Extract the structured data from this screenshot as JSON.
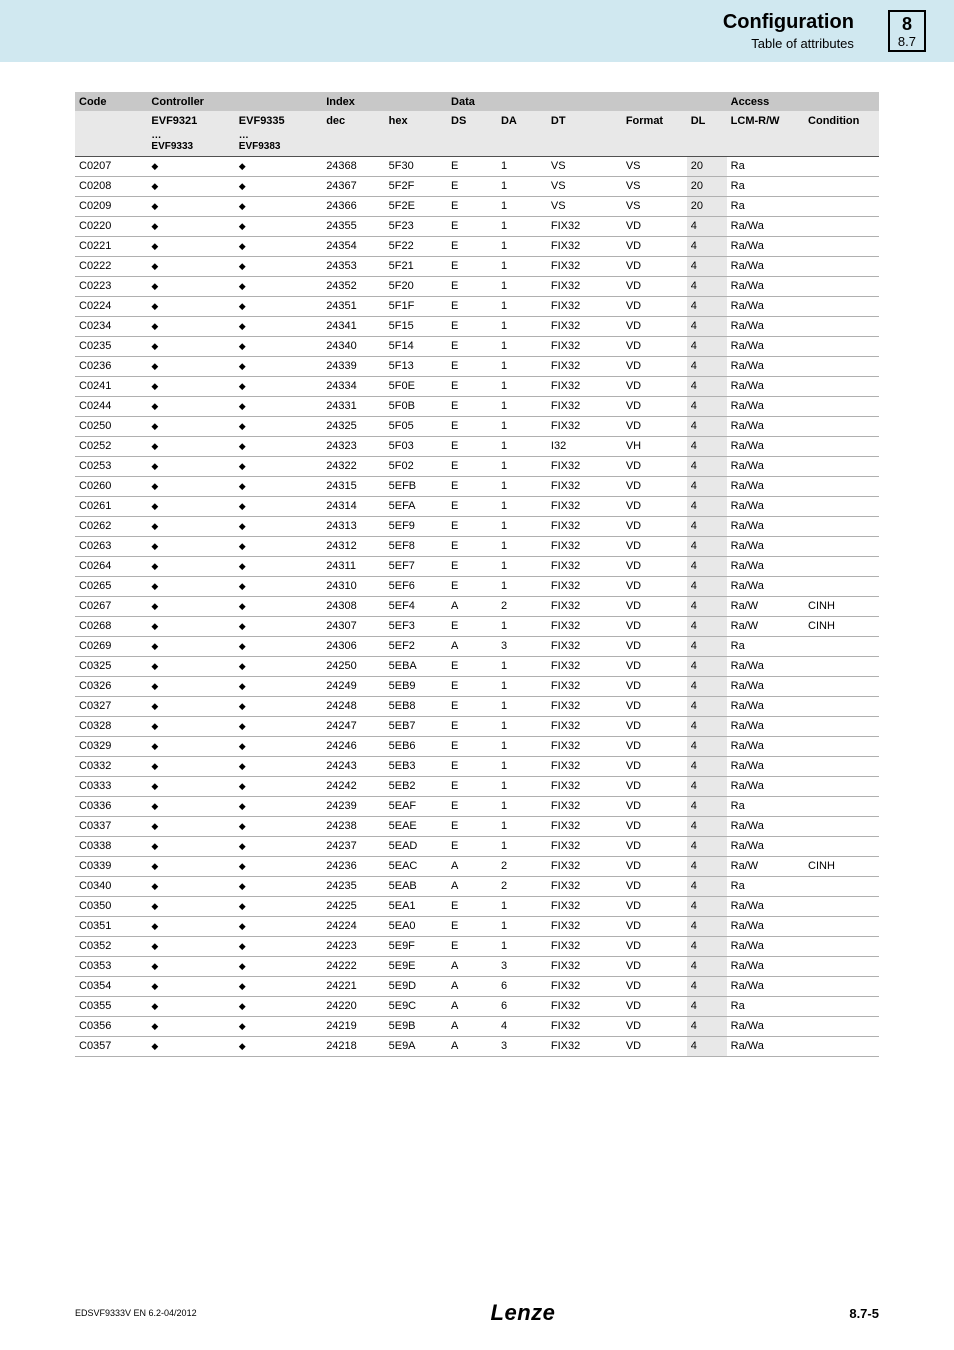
{
  "header": {
    "title": "Configuration",
    "subtitle": "Table of attributes",
    "chapter": "8",
    "section": "8.7"
  },
  "footer": {
    "doc_id": "EDSVF9333V   EN   6.2-04/2012",
    "logo": "Lenze",
    "page": "8.7-5"
  },
  "table": {
    "group_headers": {
      "code": "Code",
      "controller": "Controller",
      "index": "Index",
      "data": "Data",
      "access": "Access"
    },
    "sub_headers": {
      "ctrl1": "EVF9321",
      "ctrl2": "EVF9335",
      "ctrl1b": "…\nEVF9333",
      "ctrl2b": "…\nEVF9383",
      "dec": "dec",
      "hex": "hex",
      "ds": "DS",
      "da": "DA",
      "dt": "DT",
      "format": "Format",
      "dl": "DL",
      "lcm": "LCM-R/W",
      "cond": "Condition"
    },
    "diamond": "◆",
    "rows": [
      {
        "code": "C0207",
        "dec": "24368",
        "hex": "5F30",
        "ds": "E",
        "da": "1",
        "dt": "VS",
        "fmt": "VS",
        "dl": "20",
        "lcm": "Ra",
        "cond": ""
      },
      {
        "code": "C0208",
        "dec": "24367",
        "hex": "5F2F",
        "ds": "E",
        "da": "1",
        "dt": "VS",
        "fmt": "VS",
        "dl": "20",
        "lcm": "Ra",
        "cond": ""
      },
      {
        "code": "C0209",
        "dec": "24366",
        "hex": "5F2E",
        "ds": "E",
        "da": "1",
        "dt": "VS",
        "fmt": "VS",
        "dl": "20",
        "lcm": "Ra",
        "cond": ""
      },
      {
        "code": "C0220",
        "dec": "24355",
        "hex": "5F23",
        "ds": "E",
        "da": "1",
        "dt": "FIX32",
        "fmt": "VD",
        "dl": "4",
        "lcm": "Ra/Wa",
        "cond": ""
      },
      {
        "code": "C0221",
        "dec": "24354",
        "hex": "5F22",
        "ds": "E",
        "da": "1",
        "dt": "FIX32",
        "fmt": "VD",
        "dl": "4",
        "lcm": "Ra/Wa",
        "cond": ""
      },
      {
        "code": "C0222",
        "dec": "24353",
        "hex": "5F21",
        "ds": "E",
        "da": "1",
        "dt": "FIX32",
        "fmt": "VD",
        "dl": "4",
        "lcm": "Ra/Wa",
        "cond": ""
      },
      {
        "code": "C0223",
        "dec": "24352",
        "hex": "5F20",
        "ds": "E",
        "da": "1",
        "dt": "FIX32",
        "fmt": "VD",
        "dl": "4",
        "lcm": "Ra/Wa",
        "cond": ""
      },
      {
        "code": "C0224",
        "dec": "24351",
        "hex": "5F1F",
        "ds": "E",
        "da": "1",
        "dt": "FIX32",
        "fmt": "VD",
        "dl": "4",
        "lcm": "Ra/Wa",
        "cond": ""
      },
      {
        "code": "C0234",
        "dec": "24341",
        "hex": "5F15",
        "ds": "E",
        "da": "1",
        "dt": "FIX32",
        "fmt": "VD",
        "dl": "4",
        "lcm": "Ra/Wa",
        "cond": ""
      },
      {
        "code": "C0235",
        "dec": "24340",
        "hex": "5F14",
        "ds": "E",
        "da": "1",
        "dt": "FIX32",
        "fmt": "VD",
        "dl": "4",
        "lcm": "Ra/Wa",
        "cond": ""
      },
      {
        "code": "C0236",
        "dec": "24339",
        "hex": "5F13",
        "ds": "E",
        "da": "1",
        "dt": "FIX32",
        "fmt": "VD",
        "dl": "4",
        "lcm": "Ra/Wa",
        "cond": ""
      },
      {
        "code": "C0241",
        "dec": "24334",
        "hex": "5F0E",
        "ds": "E",
        "da": "1",
        "dt": "FIX32",
        "fmt": "VD",
        "dl": "4",
        "lcm": "Ra/Wa",
        "cond": ""
      },
      {
        "code": "C0244",
        "dec": "24331",
        "hex": "5F0B",
        "ds": "E",
        "da": "1",
        "dt": "FIX32",
        "fmt": "VD",
        "dl": "4",
        "lcm": "Ra/Wa",
        "cond": ""
      },
      {
        "code": "C0250",
        "dec": "24325",
        "hex": "5F05",
        "ds": "E",
        "da": "1",
        "dt": "FIX32",
        "fmt": "VD",
        "dl": "4",
        "lcm": "Ra/Wa",
        "cond": ""
      },
      {
        "code": "C0252",
        "dec": "24323",
        "hex": "5F03",
        "ds": "E",
        "da": "1",
        "dt": "I32",
        "fmt": "VH",
        "dl": "4",
        "lcm": "Ra/Wa",
        "cond": ""
      },
      {
        "code": "C0253",
        "dec": "24322",
        "hex": "5F02",
        "ds": "E",
        "da": "1",
        "dt": "FIX32",
        "fmt": "VD",
        "dl": "4",
        "lcm": "Ra/Wa",
        "cond": ""
      },
      {
        "code": "C0260",
        "dec": "24315",
        "hex": "5EFB",
        "ds": "E",
        "da": "1",
        "dt": "FIX32",
        "fmt": "VD",
        "dl": "4",
        "lcm": "Ra/Wa",
        "cond": ""
      },
      {
        "code": "C0261",
        "dec": "24314",
        "hex": "5EFA",
        "ds": "E",
        "da": "1",
        "dt": "FIX32",
        "fmt": "VD",
        "dl": "4",
        "lcm": "Ra/Wa",
        "cond": ""
      },
      {
        "code": "C0262",
        "dec": "24313",
        "hex": "5EF9",
        "ds": "E",
        "da": "1",
        "dt": "FIX32",
        "fmt": "VD",
        "dl": "4",
        "lcm": "Ra/Wa",
        "cond": ""
      },
      {
        "code": "C0263",
        "dec": "24312",
        "hex": "5EF8",
        "ds": "E",
        "da": "1",
        "dt": "FIX32",
        "fmt": "VD",
        "dl": "4",
        "lcm": "Ra/Wa",
        "cond": ""
      },
      {
        "code": "C0264",
        "dec": "24311",
        "hex": "5EF7",
        "ds": "E",
        "da": "1",
        "dt": "FIX32",
        "fmt": "VD",
        "dl": "4",
        "lcm": "Ra/Wa",
        "cond": ""
      },
      {
        "code": "C0265",
        "dec": "24310",
        "hex": "5EF6",
        "ds": "E",
        "da": "1",
        "dt": "FIX32",
        "fmt": "VD",
        "dl": "4",
        "lcm": "Ra/Wa",
        "cond": ""
      },
      {
        "code": "C0267",
        "dec": "24308",
        "hex": "5EF4",
        "ds": "A",
        "da": "2",
        "dt": "FIX32",
        "fmt": "VD",
        "dl": "4",
        "lcm": "Ra/W",
        "cond": "CINH"
      },
      {
        "code": "C0268",
        "dec": "24307",
        "hex": "5EF3",
        "ds": "E",
        "da": "1",
        "dt": "FIX32",
        "fmt": "VD",
        "dl": "4",
        "lcm": "Ra/W",
        "cond": "CINH"
      },
      {
        "code": "C0269",
        "dec": "24306",
        "hex": "5EF2",
        "ds": "A",
        "da": "3",
        "dt": "FIX32",
        "fmt": "VD",
        "dl": "4",
        "lcm": "Ra",
        "cond": ""
      },
      {
        "code": "C0325",
        "dec": "24250",
        "hex": "5EBA",
        "ds": "E",
        "da": "1",
        "dt": "FIX32",
        "fmt": "VD",
        "dl": "4",
        "lcm": "Ra/Wa",
        "cond": ""
      },
      {
        "code": "C0326",
        "dec": "24249",
        "hex": "5EB9",
        "ds": "E",
        "da": "1",
        "dt": "FIX32",
        "fmt": "VD",
        "dl": "4",
        "lcm": "Ra/Wa",
        "cond": ""
      },
      {
        "code": "C0327",
        "dec": "24248",
        "hex": "5EB8",
        "ds": "E",
        "da": "1",
        "dt": "FIX32",
        "fmt": "VD",
        "dl": "4",
        "lcm": "Ra/Wa",
        "cond": ""
      },
      {
        "code": "C0328",
        "dec": "24247",
        "hex": "5EB7",
        "ds": "E",
        "da": "1",
        "dt": "FIX32",
        "fmt": "VD",
        "dl": "4",
        "lcm": "Ra/Wa",
        "cond": ""
      },
      {
        "code": "C0329",
        "dec": "24246",
        "hex": "5EB6",
        "ds": "E",
        "da": "1",
        "dt": "FIX32",
        "fmt": "VD",
        "dl": "4",
        "lcm": "Ra/Wa",
        "cond": ""
      },
      {
        "code": "C0332",
        "dec": "24243",
        "hex": "5EB3",
        "ds": "E",
        "da": "1",
        "dt": "FIX32",
        "fmt": "VD",
        "dl": "4",
        "lcm": "Ra/Wa",
        "cond": ""
      },
      {
        "code": "C0333",
        "dec": "24242",
        "hex": "5EB2",
        "ds": "E",
        "da": "1",
        "dt": "FIX32",
        "fmt": "VD",
        "dl": "4",
        "lcm": "Ra/Wa",
        "cond": ""
      },
      {
        "code": "C0336",
        "dec": "24239",
        "hex": "5EAF",
        "ds": "E",
        "da": "1",
        "dt": "FIX32",
        "fmt": "VD",
        "dl": "4",
        "lcm": "Ra",
        "cond": ""
      },
      {
        "code": "C0337",
        "dec": "24238",
        "hex": "5EAE",
        "ds": "E",
        "da": "1",
        "dt": "FIX32",
        "fmt": "VD",
        "dl": "4",
        "lcm": "Ra/Wa",
        "cond": ""
      },
      {
        "code": "C0338",
        "dec": "24237",
        "hex": "5EAD",
        "ds": "E",
        "da": "1",
        "dt": "FIX32",
        "fmt": "VD",
        "dl": "4",
        "lcm": "Ra/Wa",
        "cond": ""
      },
      {
        "code": "C0339",
        "dec": "24236",
        "hex": "5EAC",
        "ds": "A",
        "da": "2",
        "dt": "FIX32",
        "fmt": "VD",
        "dl": "4",
        "lcm": "Ra/W",
        "cond": "CINH"
      },
      {
        "code": "C0340",
        "dec": "24235",
        "hex": "5EAB",
        "ds": "A",
        "da": "2",
        "dt": "FIX32",
        "fmt": "VD",
        "dl": "4",
        "lcm": "Ra",
        "cond": ""
      },
      {
        "code": "C0350",
        "dec": "24225",
        "hex": "5EA1",
        "ds": "E",
        "da": "1",
        "dt": "FIX32",
        "fmt": "VD",
        "dl": "4",
        "lcm": "Ra/Wa",
        "cond": ""
      },
      {
        "code": "C0351",
        "dec": "24224",
        "hex": "5EA0",
        "ds": "E",
        "da": "1",
        "dt": "FIX32",
        "fmt": "VD",
        "dl": "4",
        "lcm": "Ra/Wa",
        "cond": ""
      },
      {
        "code": "C0352",
        "dec": "24223",
        "hex": "5E9F",
        "ds": "E",
        "da": "1",
        "dt": "FIX32",
        "fmt": "VD",
        "dl": "4",
        "lcm": "Ra/Wa",
        "cond": ""
      },
      {
        "code": "C0353",
        "dec": "24222",
        "hex": "5E9E",
        "ds": "A",
        "da": "3",
        "dt": "FIX32",
        "fmt": "VD",
        "dl": "4",
        "lcm": "Ra/Wa",
        "cond": ""
      },
      {
        "code": "C0354",
        "dec": "24221",
        "hex": "5E9D",
        "ds": "A",
        "da": "6",
        "dt": "FIX32",
        "fmt": "VD",
        "dl": "4",
        "lcm": "Ra/Wa",
        "cond": ""
      },
      {
        "code": "C0355",
        "dec": "24220",
        "hex": "5E9C",
        "ds": "A",
        "da": "6",
        "dt": "FIX32",
        "fmt": "VD",
        "dl": "4",
        "lcm": "Ra",
        "cond": ""
      },
      {
        "code": "C0356",
        "dec": "24219",
        "hex": "5E9B",
        "ds": "A",
        "da": "4",
        "dt": "FIX32",
        "fmt": "VD",
        "dl": "4",
        "lcm": "Ra/Wa",
        "cond": ""
      },
      {
        "code": "C0357",
        "dec": "24218",
        "hex": "5E9A",
        "ds": "A",
        "da": "3",
        "dt": "FIX32",
        "fmt": "VD",
        "dl": "4",
        "lcm": "Ra/Wa",
        "cond": ""
      }
    ]
  }
}
